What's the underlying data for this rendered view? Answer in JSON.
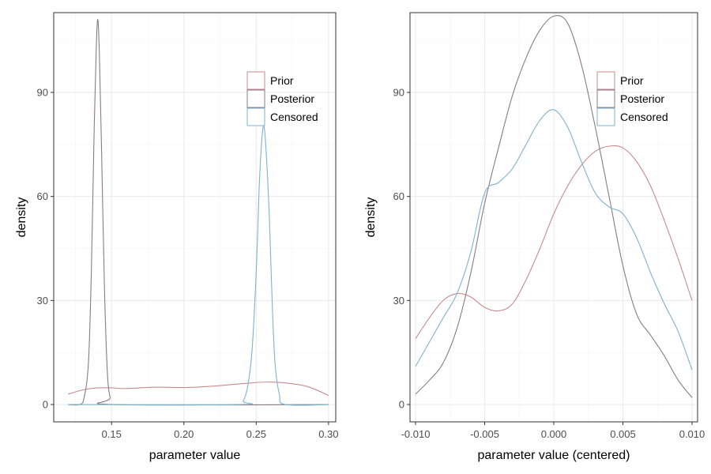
{
  "colors": {
    "Prior": "#c98a8f",
    "Posterior": "#8a7b86",
    "Censored": "#7db3cd"
  },
  "chart_data": [
    {
      "type": "line",
      "xlabel": "parameter value",
      "ylabel": "density",
      "xlim": [
        0.11,
        0.305
      ],
      "ylim": [
        -5,
        113
      ],
      "xticks": [
        0.15,
        0.2,
        0.25,
        0.3
      ],
      "xtick_labels": [
        "0.15",
        "0.20",
        "0.25",
        "0.30"
      ],
      "yticks": [
        0,
        30,
        60,
        90
      ],
      "ytick_labels": [
        "0",
        "30",
        "60",
        "90"
      ],
      "grid": true,
      "legend_position": "top-right",
      "series": [
        {
          "name": "Prior",
          "points": [
            [
              0.12,
              3.0
            ],
            [
              0.13,
              4.2
            ],
            [
              0.14,
              4.8
            ],
            [
              0.15,
              4.8
            ],
            [
              0.16,
              4.6
            ],
            [
              0.18,
              5.0
            ],
            [
              0.2,
              4.9
            ],
            [
              0.22,
              5.3
            ],
            [
              0.24,
              6.0
            ],
            [
              0.26,
              6.5
            ],
            [
              0.28,
              5.7
            ],
            [
              0.29,
              4.5
            ],
            [
              0.3,
              2.6
            ]
          ]
        },
        {
          "name": "Posterior",
          "points": [
            [
              0.12,
              0
            ],
            [
              0.128,
              0
            ],
            [
              0.131,
              2
            ],
            [
              0.134,
              12
            ],
            [
              0.136,
              38
            ],
            [
              0.138,
              80
            ],
            [
              0.1395,
              104
            ],
            [
              0.1405,
              111
            ],
            [
              0.1415,
              102
            ],
            [
              0.143,
              75
            ],
            [
              0.145,
              35
            ],
            [
              0.147,
              10
            ],
            [
              0.149,
              2
            ],
            [
              0.152,
              0
            ],
            [
              0.3,
              0
            ]
          ]
        },
        {
          "name": "Censored",
          "points": [
            [
              0.12,
              0
            ],
            [
              0.238,
              0
            ],
            [
              0.241,
              1
            ],
            [
              0.244,
              5
            ],
            [
              0.247,
              15
            ],
            [
              0.25,
              38
            ],
            [
              0.252,
              62
            ],
            [
              0.254,
              77
            ],
            [
              0.2555,
              80
            ],
            [
              0.257,
              72
            ],
            [
              0.259,
              55
            ],
            [
              0.261,
              30
            ],
            [
              0.263,
              12
            ],
            [
              0.266,
              3
            ],
            [
              0.27,
              0
            ],
            [
              0.3,
              0
            ]
          ]
        }
      ]
    },
    {
      "type": "line",
      "xlabel": "parameter value (centered)",
      "ylabel": "density",
      "xlim": [
        -0.0104,
        0.0104
      ],
      "ylim": [
        -5,
        113
      ],
      "xticks": [
        -0.01,
        -0.005,
        0.0,
        0.005,
        0.01
      ],
      "xtick_labels": [
        "-0.010",
        "-0.005",
        "0.000",
        "0.005",
        "0.010"
      ],
      "yticks": [
        0,
        30,
        60,
        90
      ],
      "ytick_labels": [
        "0",
        "30",
        "60",
        "90"
      ],
      "grid": true,
      "legend_position": "top-right",
      "series": [
        {
          "name": "Prior",
          "points": [
            [
              -0.01,
              19
            ],
            [
              -0.009,
              25
            ],
            [
              -0.008,
              30
            ],
            [
              -0.007,
              32
            ],
            [
              -0.006,
              31
            ],
            [
              -0.005,
              28
            ],
            [
              -0.004,
              27
            ],
            [
              -0.003,
              29
            ],
            [
              -0.002,
              36
            ],
            [
              -0.001,
              45
            ],
            [
              0.0,
              55
            ],
            [
              0.001,
              63
            ],
            [
              0.002,
              69
            ],
            [
              0.003,
              73
            ],
            [
              0.004,
              74.5
            ],
            [
              0.005,
              74
            ],
            [
              0.006,
              70
            ],
            [
              0.007,
              63
            ],
            [
              0.008,
              53
            ],
            [
              0.009,
              42
            ],
            [
              0.01,
              30
            ]
          ]
        },
        {
          "name": "Posterior",
          "points": [
            [
              -0.01,
              3
            ],
            [
              -0.009,
              7
            ],
            [
              -0.008,
              12
            ],
            [
              -0.007,
              22
            ],
            [
              -0.006,
              38
            ],
            [
              -0.005,
              58
            ],
            [
              -0.004,
              74
            ],
            [
              -0.003,
              89
            ],
            [
              -0.002,
              100
            ],
            [
              -0.001,
              108
            ],
            [
              0.0,
              112
            ],
            [
              0.001,
              110
            ],
            [
              0.002,
              98
            ],
            [
              0.003,
              80
            ],
            [
              0.004,
              60
            ],
            [
              0.005,
              40
            ],
            [
              0.006,
              26
            ],
            [
              0.007,
              20
            ],
            [
              0.008,
              14
            ],
            [
              0.009,
              7
            ],
            [
              0.01,
              2
            ]
          ]
        },
        {
          "name": "Censored",
          "points": [
            [
              -0.01,
              11
            ],
            [
              -0.009,
              18
            ],
            [
              -0.008,
              25
            ],
            [
              -0.007,
              32
            ],
            [
              -0.006,
              44
            ],
            [
              -0.005,
              61
            ],
            [
              -0.004,
              64
            ],
            [
              -0.003,
              68
            ],
            [
              -0.002,
              75
            ],
            [
              -0.001,
              82
            ],
            [
              0.0,
              85
            ],
            [
              0.001,
              80
            ],
            [
              0.002,
              70
            ],
            [
              0.003,
              61
            ],
            [
              0.004,
              57
            ],
            [
              0.005,
              55
            ],
            [
              0.006,
              48
            ],
            [
              0.007,
              38
            ],
            [
              0.008,
              29
            ],
            [
              0.009,
              21
            ],
            [
              0.01,
              10
            ]
          ]
        }
      ]
    }
  ]
}
